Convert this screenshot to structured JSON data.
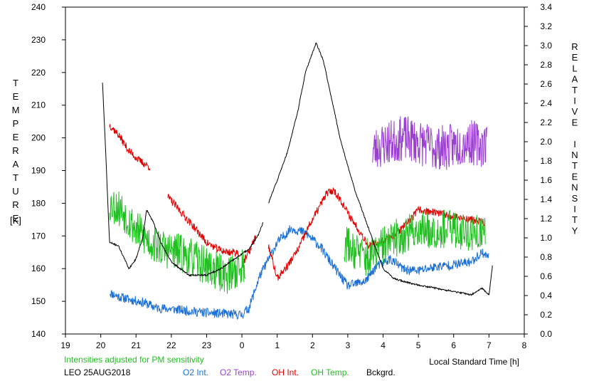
{
  "chart_data": {
    "type": "line",
    "left_axis_label_letters": [
      "T",
      "E",
      "M",
      "P",
      "E",
      "R",
      "A",
      "T",
      "U",
      "R",
      "E"
    ],
    "left_axis_unit": "[K]",
    "right_axis_label_letters": [
      "R",
      "E",
      "L",
      "A",
      "T",
      "I",
      "V",
      "E",
      "",
      "I",
      "N",
      "T",
      "E",
      "N",
      "S",
      "I",
      "T",
      "Y"
    ],
    "xlabel": "Local Standard Time [h]",
    "note": "Intensities adjusted for PM sensitivity",
    "station": "LEO 25AUG2018",
    "x_axis": {
      "min": 19,
      "max": 32,
      "ticks": [
        19,
        20,
        21,
        22,
        23,
        24,
        25,
        26,
        27,
        28,
        29,
        30,
        31,
        32
      ],
      "tick_labels": [
        "19",
        "20",
        "21",
        "22",
        "23",
        "0",
        "1",
        "2",
        "3",
        "4",
        "5",
        "6",
        "7",
        "8"
      ]
    },
    "y_left": {
      "min": 140,
      "max": 240,
      "ticks": [
        140,
        150,
        160,
        170,
        180,
        190,
        200,
        210,
        220,
        230,
        240
      ],
      "tick_labels": [
        "140",
        "150",
        "160",
        "170",
        "180",
        "190",
        "200",
        "210",
        "220",
        "230",
        "240"
      ]
    },
    "y_right": {
      "min": 0.0,
      "max": 3.4,
      "ticks": [
        0,
        0.2,
        0.4,
        0.6,
        0.8,
        1.0,
        1.2,
        1.4,
        1.6,
        1.8,
        2.0,
        2.2,
        2.4,
        2.6,
        2.8,
        3.0,
        3.2,
        3.4
      ],
      "tick_labels": [
        "0.0",
        "0.2",
        "0.4",
        "0.6",
        "0.8",
        "1.0",
        "1.2",
        "1.4",
        "1.6",
        "1.8",
        "2.0",
        "2.2",
        "2.4",
        "2.6",
        "2.8",
        "3.0",
        "3.2",
        "3.4"
      ]
    },
    "series": [
      {
        "name": "O2 Int.",
        "color": "#1a6fd6",
        "axis": "right",
        "noise": 0.05,
        "seed": 11,
        "segments": [
          [
            [
              20.25,
              0.43
            ],
            [
              20.5,
              0.39
            ],
            [
              20.8,
              0.36
            ],
            [
              21.2,
              0.33
            ],
            [
              21.6,
              0.27
            ],
            [
              22,
              0.26
            ],
            [
              22.5,
              0.24
            ],
            [
              23,
              0.22
            ],
            [
              23.5,
              0.21
            ],
            [
              24,
              0.2
            ],
            [
              24.2,
              0.27
            ],
            [
              24.5,
              0.6
            ],
            [
              25,
              0.95
            ],
            [
              25.4,
              1.1
            ],
            [
              25.8,
              1.05
            ],
            [
              26.2,
              0.92
            ],
            [
              26.6,
              0.7
            ],
            [
              27,
              0.5
            ],
            [
              27.5,
              0.55
            ],
            [
              27.8,
              0.7
            ],
            [
              28.2,
              0.78
            ],
            [
              28.6,
              0.67
            ],
            [
              29,
              0.66
            ],
            [
              29.5,
              0.7
            ],
            [
              30,
              0.72
            ],
            [
              30.5,
              0.75
            ],
            [
              30.8,
              0.85
            ],
            [
              31,
              0.8
            ]
          ]
        ]
      },
      {
        "name": "O2 Temp.",
        "color": "#9b3fd1",
        "axis": "left",
        "noise": 7,
        "seed": 23,
        "segments": [
          [
            [
              27.7,
              196
            ],
            [
              28,
              198
            ],
            [
              28.3,
              199
            ],
            [
              28.6,
              200
            ],
            [
              28.9,
              199
            ],
            [
              29.2,
              198
            ],
            [
              29.5,
              197
            ],
            [
              29.8,
              197
            ],
            [
              30.1,
              198
            ],
            [
              30.4,
              199
            ],
            [
              30.7,
              198
            ],
            [
              30.95,
              198
            ]
          ]
        ]
      },
      {
        "name": "OH Int.",
        "color": "#e00000",
        "axis": "left",
        "noise": 1.2,
        "seed": 37,
        "segments": [
          [
            [
              20.25,
              204
            ],
            [
              20.5,
              201
            ],
            [
              20.8,
              196
            ],
            [
              21.1,
              193
            ],
            [
              21.4,
              191
            ]
          ],
          [
            [
              21.9,
              182
            ],
            [
              22.3,
              177
            ],
            [
              22.7,
              172
            ],
            [
              23,
              168
            ],
            [
              23.3,
              166
            ],
            [
              23.6,
              165
            ],
            [
              23.9,
              165
            ]
          ],
          [
            [
              24.0,
              161
            ],
            [
              24.2,
              165
            ],
            [
              24.4,
              170
            ]
          ],
          [
            [
              24.75,
              167
            ],
            [
              25,
              157
            ],
            [
              25.3,
              161
            ],
            [
              25.6,
              166
            ],
            [
              25.9,
              173
            ],
            [
              26.2,
              179
            ],
            [
              26.4,
              183
            ],
            [
              26.6,
              184
            ],
            [
              26.8,
              181
            ],
            [
              27,
              177
            ],
            [
              27.3,
              172
            ],
            [
              27.6,
              167
            ],
            [
              27.9,
              168
            ],
            [
              28.3,
              170
            ],
            [
              28.7,
              174
            ],
            [
              29,
              178
            ],
            [
              29.5,
              177
            ],
            [
              30,
              176
            ],
            [
              30.5,
              175
            ],
            [
              30.9,
              174
            ]
          ]
        ]
      },
      {
        "name": "OH Temp.",
        "color": "#20c020",
        "axis": "left",
        "noise": 6,
        "seed": 53,
        "segments": [
          [
            [
              20.25,
              180
            ],
            [
              20.6,
              178
            ],
            [
              21,
              172
            ],
            [
              21.4,
              168
            ],
            [
              21.8,
              166
            ],
            [
              22.2,
              165
            ],
            [
              22.6,
              163
            ],
            [
              23,
              161
            ],
            [
              23.3,
              159
            ],
            [
              23.6,
              158
            ],
            [
              23.9,
              160
            ],
            [
              24.1,
              161
            ]
          ],
          [
            [
              26.9,
              168
            ],
            [
              27.3,
              165
            ],
            [
              27.6,
              163
            ],
            [
              28,
              167
            ],
            [
              28.5,
              170
            ],
            [
              29,
              172
            ],
            [
              29.5,
              172
            ],
            [
              30,
              172
            ],
            [
              30.5,
              171
            ],
            [
              30.9,
              170
            ]
          ]
        ]
      },
      {
        "name": "Bckgrd.",
        "color": "#000000",
        "axis": "left",
        "noise": 0.25,
        "seed": 71,
        "segments": [
          [
            [
              20.05,
              217
            ],
            [
              20.15,
              193
            ],
            [
              20.25,
              168
            ],
            [
              20.5,
              167
            ],
            [
              20.8,
              160
            ],
            [
              21,
              163
            ],
            [
              21.2,
              170
            ],
            [
              21.3,
              178
            ],
            [
              21.5,
              174
            ],
            [
              21.7,
              168
            ],
            [
              22,
              162
            ],
            [
              22.5,
              158
            ],
            [
              23,
              158
            ],
            [
              23.4,
              160
            ],
            [
              23.8,
              163
            ],
            [
              24.2,
              166
            ],
            [
              24.45,
              170
            ],
            [
              24.6,
              174
            ]
          ],
          [
            [
              24.75,
              180
            ],
            [
              25,
              187
            ],
            [
              25.3,
              196
            ],
            [
              25.6,
              209
            ],
            [
              25.8,
              220
            ],
            [
              26,
              226
            ],
            [
              26.1,
              229
            ],
            [
              26.3,
              224
            ],
            [
              26.5,
              214
            ],
            [
              26.8,
              199
            ],
            [
              27.2,
              184
            ],
            [
              27.6,
              172
            ],
            [
              28,
              160
            ],
            [
              28.3,
              157
            ],
            [
              28.6,
              156
            ],
            [
              29,
              155
            ],
            [
              29.5,
              154
            ],
            [
              30,
              153
            ],
            [
              30.5,
              152
            ],
            [
              30.8,
              154
            ],
            [
              31,
              152
            ],
            [
              31.1,
              161
            ]
          ]
        ]
      }
    ]
  }
}
